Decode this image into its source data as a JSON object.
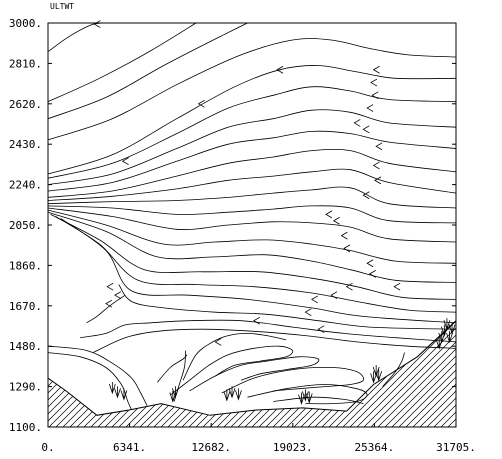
{
  "chart_data": {
    "type": "streamline",
    "title": "ULTWT",
    "xlim": [
      0,
      31705
    ],
    "ylim": [
      1100,
      3000
    ],
    "x_ticks": [
      0,
      6341,
      12682,
      19023,
      25364,
      31705
    ],
    "x_tick_labels": [
      "0.",
      "6341.",
      "12682.",
      "19023.",
      "25364.",
      "31705."
    ],
    "y_ticks": [
      1100,
      1290,
      1480,
      1670,
      1860,
      2050,
      2240,
      2430,
      2620,
      2810,
      3000
    ],
    "y_tick_labels": [
      "1100.",
      "1290.",
      "1480.",
      "1670.",
      "1860.",
      "2050.",
      "2240.",
      "2430.",
      "2620.",
      "2810.",
      "3000."
    ],
    "terrain": [
      [
        0,
        1330
      ],
      [
        1500,
        1265
      ],
      [
        3800,
        1155
      ],
      [
        6300,
        1180
      ],
      [
        8800,
        1210
      ],
      [
        12600,
        1155
      ],
      [
        16200,
        1180
      ],
      [
        19800,
        1190
      ],
      [
        23200,
        1175
      ],
      [
        25300,
        1300
      ],
      [
        28700,
        1430
      ],
      [
        31705,
        1600
      ]
    ],
    "streamlines": [
      [
        [
          0,
          2865
        ],
        [
          1600,
          2935
        ],
        [
          3300,
          2990
        ],
        [
          4200,
          3000
        ]
      ],
      [
        [
          0,
          2630
        ],
        [
          4000,
          2740
        ],
        [
          8000,
          2870
        ],
        [
          11500,
          3000
        ]
      ],
      [
        [
          0,
          2550
        ],
        [
          4500,
          2650
        ],
        [
          9000,
          2800
        ],
        [
          13500,
          2940
        ],
        [
          15500,
          3000
        ]
      ],
      [
        [
          0,
          2450
        ],
        [
          5000,
          2550
        ],
        [
          10000,
          2710
        ],
        [
          15000,
          2850
        ],
        [
          19000,
          2920
        ],
        [
          22000,
          2920
        ],
        [
          25000,
          2880
        ],
        [
          28000,
          2850
        ],
        [
          31705,
          2840
        ]
      ],
      [
        [
          0,
          2290
        ],
        [
          5000,
          2380
        ],
        [
          10000,
          2550
        ],
        [
          14500,
          2700
        ],
        [
          18000,
          2780
        ],
        [
          21000,
          2800
        ],
        [
          24000,
          2770
        ],
        [
          27000,
          2740
        ],
        [
          31705,
          2740
        ]
      ],
      [
        [
          0,
          2270
        ],
        [
          5000,
          2340
        ],
        [
          10000,
          2480
        ],
        [
          14000,
          2600
        ],
        [
          17500,
          2660
        ],
        [
          20500,
          2700
        ],
        [
          23500,
          2680
        ],
        [
          26500,
          2640
        ],
        [
          31705,
          2630
        ]
      ],
      [
        [
          0,
          2240
        ],
        [
          5000,
          2290
        ],
        [
          10000,
          2410
        ],
        [
          14000,
          2510
        ],
        [
          17500,
          2550
        ],
        [
          20500,
          2590
        ],
        [
          23500,
          2580
        ],
        [
          26500,
          2530
        ],
        [
          31705,
          2510
        ]
      ],
      [
        [
          0,
          2210
        ],
        [
          5000,
          2250
        ],
        [
          10000,
          2350
        ],
        [
          14000,
          2430
        ],
        [
          17500,
          2460
        ],
        [
          20500,
          2490
        ],
        [
          23500,
          2480
        ],
        [
          26500,
          2440
        ],
        [
          31705,
          2410
        ]
      ],
      [
        [
          0,
          2180
        ],
        [
          5000,
          2210
        ],
        [
          10000,
          2280
        ],
        [
          14000,
          2340
        ],
        [
          17500,
          2370
        ],
        [
          20500,
          2400
        ],
        [
          23500,
          2400
        ],
        [
          26500,
          2340
        ],
        [
          31705,
          2300
        ]
      ],
      [
        [
          0,
          2165
        ],
        [
          5000,
          2185
        ],
        [
          10000,
          2220
        ],
        [
          14000,
          2260
        ],
        [
          17500,
          2280
        ],
        [
          20500,
          2300
        ],
        [
          23500,
          2310
        ],
        [
          26500,
          2250
        ],
        [
          31705,
          2200
        ]
      ],
      [
        [
          0,
          2150
        ],
        [
          5000,
          2160
        ],
        [
          10000,
          2165
        ],
        [
          14000,
          2180
        ],
        [
          17500,
          2200
        ],
        [
          20500,
          2215
        ],
        [
          23500,
          2225
        ],
        [
          26500,
          2150
        ],
        [
          31705,
          2130
        ]
      ],
      [
        [
          0,
          2140
        ],
        [
          5000,
          2130
        ],
        [
          10000,
          2100
        ],
        [
          14000,
          2110
        ],
        [
          17500,
          2125
        ],
        [
          20500,
          2140
        ],
        [
          23500,
          2130
        ],
        [
          26500,
          2070
        ],
        [
          31705,
          2060
        ]
      ],
      [
        [
          0,
          2130
        ],
        [
          5000,
          2090
        ],
        [
          10000,
          2030
        ],
        [
          14000,
          2050
        ],
        [
          17500,
          2065
        ],
        [
          20500,
          2060
        ],
        [
          23500,
          2040
        ],
        [
          26500,
          1985
        ],
        [
          31705,
          1970
        ]
      ],
      [
        [
          0,
          2120
        ],
        [
          4500,
          2050
        ],
        [
          9000,
          1960
        ],
        [
          13000,
          1970
        ],
        [
          17000,
          1980
        ],
        [
          20500,
          1960
        ],
        [
          23500,
          1930
        ],
        [
          27000,
          1880
        ],
        [
          31705,
          1870
        ]
      ],
      [
        [
          0,
          2110
        ],
        [
          4500,
          2020
        ],
        [
          8500,
          1900
        ],
        [
          13000,
          1900
        ],
        [
          17000,
          1910
        ],
        [
          20500,
          1880
        ],
        [
          23500,
          1840
        ],
        [
          27000,
          1790
        ],
        [
          31705,
          1780
        ]
      ],
      [
        [
          200,
          2100
        ],
        [
          4000,
          1980
        ],
        [
          7500,
          1840
        ],
        [
          12000,
          1830
        ],
        [
          16500,
          1830
        ],
        [
          20500,
          1800
        ],
        [
          24000,
          1760
        ],
        [
          27500,
          1710
        ],
        [
          31705,
          1700
        ]
      ],
      [
        [
          600,
          2090
        ],
        [
          4000,
          1960
        ],
        [
          7000,
          1790
        ],
        [
          11500,
          1770
        ],
        [
          16000,
          1760
        ],
        [
          20500,
          1730
        ],
        [
          24000,
          1690
        ],
        [
          28000,
          1650
        ],
        [
          31705,
          1640
        ]
      ],
      [
        [
          1000,
          2080
        ],
        [
          4500,
          1930
        ],
        [
          6500,
          1740
        ],
        [
          11000,
          1720
        ],
        [
          15500,
          1700
        ],
        [
          20500,
          1660
        ],
        [
          24500,
          1620
        ],
        [
          31705,
          1590
        ]
      ],
      [
        [
          5500,
          1770
        ],
        [
          6500,
          1690
        ],
        [
          9000,
          1660
        ],
        [
          13000,
          1640
        ],
        [
          17000,
          1630
        ],
        [
          21000,
          1600
        ],
        [
          25000,
          1570
        ],
        [
          31705,
          1560
        ]
      ],
      [
        [
          3000,
          1590
        ],
        [
          3800,
          1620
        ],
        [
          4800,
          1670
        ],
        [
          6000,
          1720
        ]
      ],
      [
        [
          2500,
          1520
        ],
        [
          4500,
          1540
        ],
        [
          6000,
          1580
        ],
        [
          8000,
          1590
        ],
        [
          11000,
          1600
        ],
        [
          15000,
          1600
        ],
        [
          19000,
          1570
        ],
        [
          23000,
          1540
        ],
        [
          27000,
          1520
        ],
        [
          31705,
          1500
        ]
      ],
      [
        [
          3500,
          1450
        ],
        [
          6000,
          1520
        ],
        [
          8500,
          1550
        ],
        [
          12000,
          1560
        ],
        [
          16000,
          1550
        ],
        [
          20000,
          1530
        ],
        [
          24000,
          1500
        ],
        [
          28000,
          1480
        ],
        [
          31705,
          1470
        ]
      ],
      [
        [
          0,
          1480
        ],
        [
          3000,
          1460
        ],
        [
          5000,
          1400
        ],
        [
          6500,
          1330
        ],
        [
          7200,
          1260
        ],
        [
          7700,
          1200
        ]
      ],
      [
        [
          0,
          1450
        ],
        [
          2500,
          1430
        ],
        [
          4500,
          1380
        ],
        [
          5700,
          1300
        ],
        [
          6200,
          1220
        ],
        [
          6500,
          1180
        ]
      ],
      [
        [
          9500,
          1250
        ],
        [
          11000,
          1320
        ],
        [
          12500,
          1390
        ],
        [
          14000,
          1440
        ],
        [
          16000,
          1470
        ],
        [
          18000,
          1480
        ],
        [
          19000,
          1460
        ],
        [
          18500,
          1430
        ],
        [
          16500,
          1410
        ],
        [
          14500,
          1390
        ],
        [
          13000,
          1340
        ]
      ],
      [
        [
          11000,
          1270
        ],
        [
          13000,
          1340
        ],
        [
          15000,
          1390
        ],
        [
          17000,
          1410
        ],
        [
          19500,
          1430
        ],
        [
          21000,
          1420
        ],
        [
          20500,
          1390
        ],
        [
          18500,
          1370
        ],
        [
          16500,
          1350
        ],
        [
          15000,
          1320
        ]
      ],
      [
        [
          13500,
          1260
        ],
        [
          16000,
          1330
        ],
        [
          19000,
          1370
        ],
        [
          22000,
          1380
        ],
        [
          24000,
          1360
        ],
        [
          24500,
          1320
        ],
        [
          23500,
          1300
        ],
        [
          21500,
          1290
        ],
        [
          19500,
          1280
        ],
        [
          17500,
          1270
        ]
      ],
      [
        [
          15500,
          1240
        ],
        [
          18500,
          1280
        ],
        [
          21500,
          1300
        ],
        [
          24000,
          1280
        ],
        [
          24800,
          1250
        ],
        [
          24000,
          1220
        ],
        [
          22000,
          1210
        ],
        [
          20000,
          1210
        ]
      ],
      [
        [
          17500,
          1220
        ],
        [
          20500,
          1240
        ],
        [
          23000,
          1230
        ],
        [
          24500,
          1210
        ]
      ],
      [
        [
          8500,
          1310
        ],
        [
          9500,
          1380
        ],
        [
          10500,
          1420
        ],
        [
          10800,
          1440
        ]
      ],
      [
        [
          9800,
          1220
        ],
        [
          10200,
          1300
        ],
        [
          10600,
          1380
        ],
        [
          10700,
          1460
        ]
      ],
      [
        [
          10500,
          1320
        ],
        [
          11500,
          1440
        ],
        [
          12800,
          1500
        ],
        [
          14000,
          1530
        ],
        [
          15500,
          1540
        ],
        [
          17000,
          1530
        ],
        [
          18500,
          1510
        ]
      ],
      [
        [
          26000,
          1290
        ],
        [
          27000,
          1360
        ],
        [
          27500,
          1410
        ],
        [
          27700,
          1450
        ]
      ]
    ],
    "arrow_points": [
      [
        3600,
        2995
      ],
      [
        11700,
        2620
      ],
      [
        17800,
        2780
      ],
      [
        25300,
        2780
      ],
      [
        25100,
        2720
      ],
      [
        25200,
        2660
      ],
      [
        24800,
        2600
      ],
      [
        23800,
        2530
      ],
      [
        24500,
        2500
      ],
      [
        25500,
        2420
      ],
      [
        25300,
        2330
      ],
      [
        25400,
        2260
      ],
      [
        24500,
        2190
      ],
      [
        21600,
        2100
      ],
      [
        22200,
        2070
      ],
      [
        22800,
        2000
      ],
      [
        23000,
        1940
      ],
      [
        24800,
        1870
      ],
      [
        25000,
        1820
      ],
      [
        23200,
        1760
      ],
      [
        22000,
        1720
      ],
      [
        26900,
        1760
      ],
      [
        20500,
        1700
      ],
      [
        20000,
        1640
      ],
      [
        16000,
        1600
      ],
      [
        21000,
        1560
      ],
      [
        13000,
        1500
      ],
      [
        4500,
        1680
      ],
      [
        5200,
        1720
      ],
      [
        5800,
        2350
      ],
      [
        4600,
        1760
      ]
    ],
    "cusp_points": [
      [
        5000,
        1260
      ],
      [
        5400,
        1240
      ],
      [
        5900,
        1230
      ],
      [
        9700,
        1220
      ],
      [
        9900,
        1240
      ],
      [
        13900,
        1225
      ],
      [
        14300,
        1240
      ],
      [
        14800,
        1230
      ],
      [
        19700,
        1210
      ],
      [
        20000,
        1225
      ],
      [
        20300,
        1215
      ],
      [
        25300,
        1310
      ],
      [
        25500,
        1340
      ],
      [
        25700,
        1320
      ],
      [
        30600,
        1500
      ],
      [
        30800,
        1530
      ],
      [
        31000,
        1560
      ],
      [
        31200,
        1500
      ],
      [
        31400,
        1540
      ],
      [
        30400,
        1470
      ]
    ]
  }
}
